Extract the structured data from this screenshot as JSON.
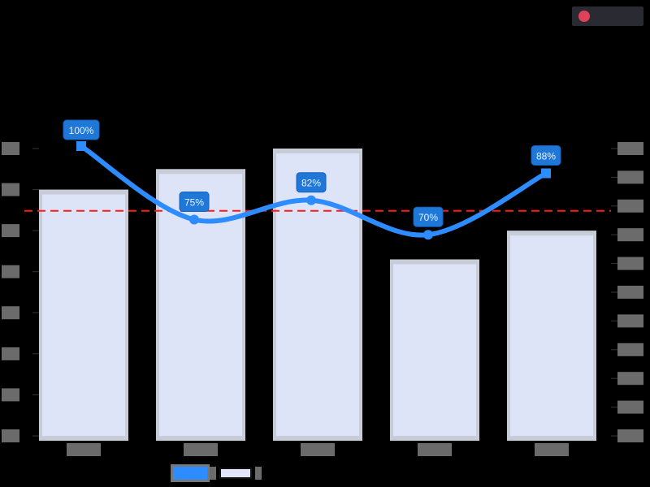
{
  "header": {
    "title": "",
    "logo": {
      "icon": "logo-circle-icon",
      "line1": "",
      "line2": ""
    }
  },
  "chart_data": {
    "type": "bar+line",
    "title": "",
    "categories": [
      "",
      "",
      "",
      "",
      ""
    ],
    "series": [
      {
        "name": "",
        "type": "bar",
        "axis": "left",
        "values": [
          6.0,
          6.5,
          7.0,
          4.3,
          5.0
        ],
        "color": "#dde4f7",
        "border_color": "#c8ccd6"
      },
      {
        "name": "",
        "type": "line",
        "axis": "right",
        "values": [
          100,
          75,
          82,
          70,
          88
        ],
        "labels": [
          "100%",
          "75%",
          "82%",
          "70%",
          "88%"
        ],
        "color": "#2d8cff",
        "smooth": true
      }
    ],
    "reference_line": {
      "value": 80,
      "axis": "right",
      "color": "#ff1a1a",
      "style": "dashed"
    },
    "left_axis": {
      "ylim": [
        0,
        7
      ],
      "ticks": [
        "",
        "",
        "",
        "",
        "",
        "",
        "",
        ""
      ]
    },
    "right_axis": {
      "ylim": [
        0,
        100
      ],
      "ticks": [
        "",
        "",
        "",
        "",
        "",
        "",
        "",
        "",
        "",
        "",
        ""
      ]
    },
    "xlabel": "",
    "ylabel_left": "",
    "ylabel_right": "",
    "legend_position": "bottom"
  },
  "legend": {
    "items": [
      {
        "swatch": "line",
        "label": "",
        "color": "#2d8cff"
      },
      {
        "swatch": "bar",
        "label": "",
        "color": "#e3e6fb"
      }
    ]
  }
}
